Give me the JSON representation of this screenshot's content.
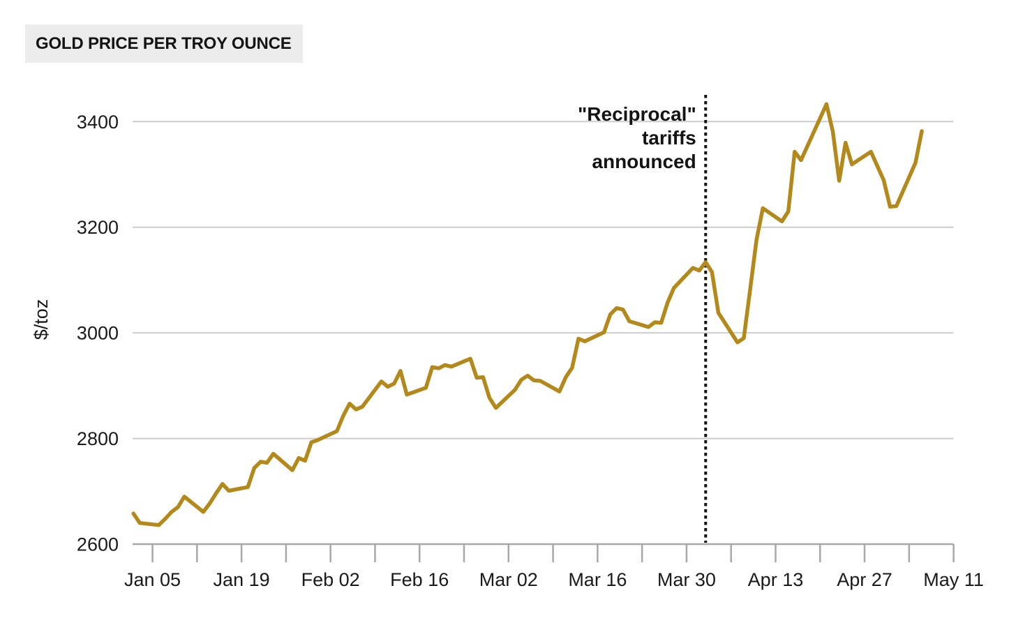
{
  "header": {
    "title": "GOLD PRICE PER TROY OUNCE"
  },
  "chart_data": {
    "type": "line",
    "title": "GOLD PRICE PER TROY OUNCE",
    "xlabel": "",
    "ylabel": "$/toz",
    "ylim": [
      2600,
      3400
    ],
    "y_ticks": [
      3400,
      3200,
      3000,
      2800,
      2600
    ],
    "x_tick_labels": [
      "Jan 05",
      "Jan 19",
      "Feb 02",
      "Feb 16",
      "Mar 02",
      "Mar 16",
      "Mar 30",
      "Apr 13",
      "Apr 27",
      "May 11"
    ],
    "x_minor_tick_interval_days": 7,
    "x_range": [
      "Jan 02",
      "May 11"
    ],
    "grid": "horizontal",
    "legend_position": "none",
    "annotation": {
      "text_lines": [
        "\"Reciprocal\"",
        "tariffs",
        "announced"
      ],
      "date": "Apr 02",
      "marker": "dotted-vertical-line"
    },
    "colors": {
      "line": "#B3891B",
      "grid": "#CDCDCD",
      "axis": "#A8A8A8",
      "annotation": "#141414",
      "text": "#1A1A1A",
      "title_background": "#ECECEC"
    },
    "series": [
      {
        "name": "Gold price ($/toz)",
        "points": [
          [
            "Jan 02",
            2658
          ],
          [
            "Jan 03",
            2640
          ],
          [
            "Jan 06",
            2636
          ],
          [
            "Jan 07",
            2648
          ],
          [
            "Jan 08",
            2661
          ],
          [
            "Jan 09",
            2670
          ],
          [
            "Jan 10",
            2690
          ],
          [
            "Jan 13",
            2661
          ],
          [
            "Jan 14",
            2677
          ],
          [
            "Jan 15",
            2696
          ],
          [
            "Jan 16",
            2714
          ],
          [
            "Jan 17",
            2701
          ],
          [
            "Jan 20",
            2708
          ],
          [
            "Jan 21",
            2744
          ],
          [
            "Jan 22",
            2756
          ],
          [
            "Jan 23",
            2754
          ],
          [
            "Jan 24",
            2771
          ],
          [
            "Jan 27",
            2740
          ],
          [
            "Jan 28",
            2763
          ],
          [
            "Jan 29",
            2758
          ],
          [
            "Jan 30",
            2793
          ],
          [
            "Jan 31",
            2797
          ],
          [
            "Feb 03",
            2814
          ],
          [
            "Feb 04",
            2843
          ],
          [
            "Feb 05",
            2866
          ],
          [
            "Feb 06",
            2855
          ],
          [
            "Feb 07",
            2860
          ],
          [
            "Feb 10",
            2908
          ],
          [
            "Feb 11",
            2898
          ],
          [
            "Feb 12",
            2904
          ],
          [
            "Feb 13",
            2928
          ],
          [
            "Feb 14",
            2883
          ],
          [
            "Feb 17",
            2896
          ],
          [
            "Feb 18",
            2935
          ],
          [
            "Feb 19",
            2933
          ],
          [
            "Feb 20",
            2939
          ],
          [
            "Feb 21",
            2936
          ],
          [
            "Feb 24",
            2951
          ],
          [
            "Feb 25",
            2915
          ],
          [
            "Feb 26",
            2916
          ],
          [
            "Feb 27",
            2877
          ],
          [
            "Feb 28",
            2858
          ],
          [
            "Mar 03",
            2892
          ],
          [
            "Mar 04",
            2911
          ],
          [
            "Mar 05",
            2919
          ],
          [
            "Mar 06",
            2910
          ],
          [
            "Mar 07",
            2909
          ],
          [
            "Mar 10",
            2889
          ],
          [
            "Mar 11",
            2916
          ],
          [
            "Mar 12",
            2934
          ],
          [
            "Mar 13",
            2989
          ],
          [
            "Mar 14",
            2984
          ],
          [
            "Mar 17",
            3001
          ],
          [
            "Mar 18",
            3035
          ],
          [
            "Mar 19",
            3047
          ],
          [
            "Mar 20",
            3044
          ],
          [
            "Mar 21",
            3022
          ],
          [
            "Mar 24",
            3011
          ],
          [
            "Mar 25",
            3020
          ],
          [
            "Mar 26",
            3019
          ],
          [
            "Mar 27",
            3057
          ],
          [
            "Mar 28",
            3085
          ],
          [
            "Mar 31",
            3123
          ],
          [
            "Apr 01",
            3118
          ],
          [
            "Apr 02",
            3134
          ],
          [
            "Apr 03",
            3115
          ],
          [
            "Apr 04",
            3038
          ],
          [
            "Apr 07",
            2982
          ],
          [
            "Apr 08",
            2990
          ],
          [
            "Apr 09",
            3082
          ],
          [
            "Apr 10",
            3176
          ],
          [
            "Apr 11",
            3236
          ],
          [
            "Apr 14",
            3211
          ],
          [
            "Apr 15",
            3230
          ],
          [
            "Apr 16",
            3343
          ],
          [
            "Apr 17",
            3327
          ],
          [
            "Apr 21",
            3433
          ],
          [
            "Apr 22",
            3381
          ],
          [
            "Apr 23",
            3288
          ],
          [
            "Apr 24",
            3360
          ],
          [
            "Apr 25",
            3319
          ],
          [
            "Apr 28",
            3343
          ],
          [
            "Apr 29",
            3316
          ],
          [
            "Apr 30",
            3289
          ],
          [
            "May 01",
            3239
          ],
          [
            "May 02",
            3240
          ],
          [
            "May 05",
            3322
          ],
          [
            "May 06",
            3382
          ]
        ]
      }
    ]
  }
}
